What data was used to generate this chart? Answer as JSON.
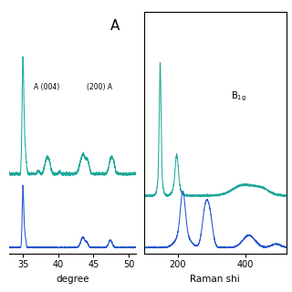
{
  "background_color": "#ffffff",
  "teal_color": "#1fa99a",
  "blue_color": "#2255cc",
  "left_xlim": [
    33,
    51
  ],
  "left_xticks": [
    35,
    40,
    45,
    50
  ],
  "left_xlabel": "degree",
  "right_xlim": [
    100,
    520
  ],
  "right_xticks": [
    200,
    400
  ],
  "right_xlabel": "Raman shi",
  "panel_label": "A",
  "annotation1": "A (004)",
  "annotation2": "(200) A",
  "annotation3_latex": "$\\mathregular{B_{1g}}$"
}
